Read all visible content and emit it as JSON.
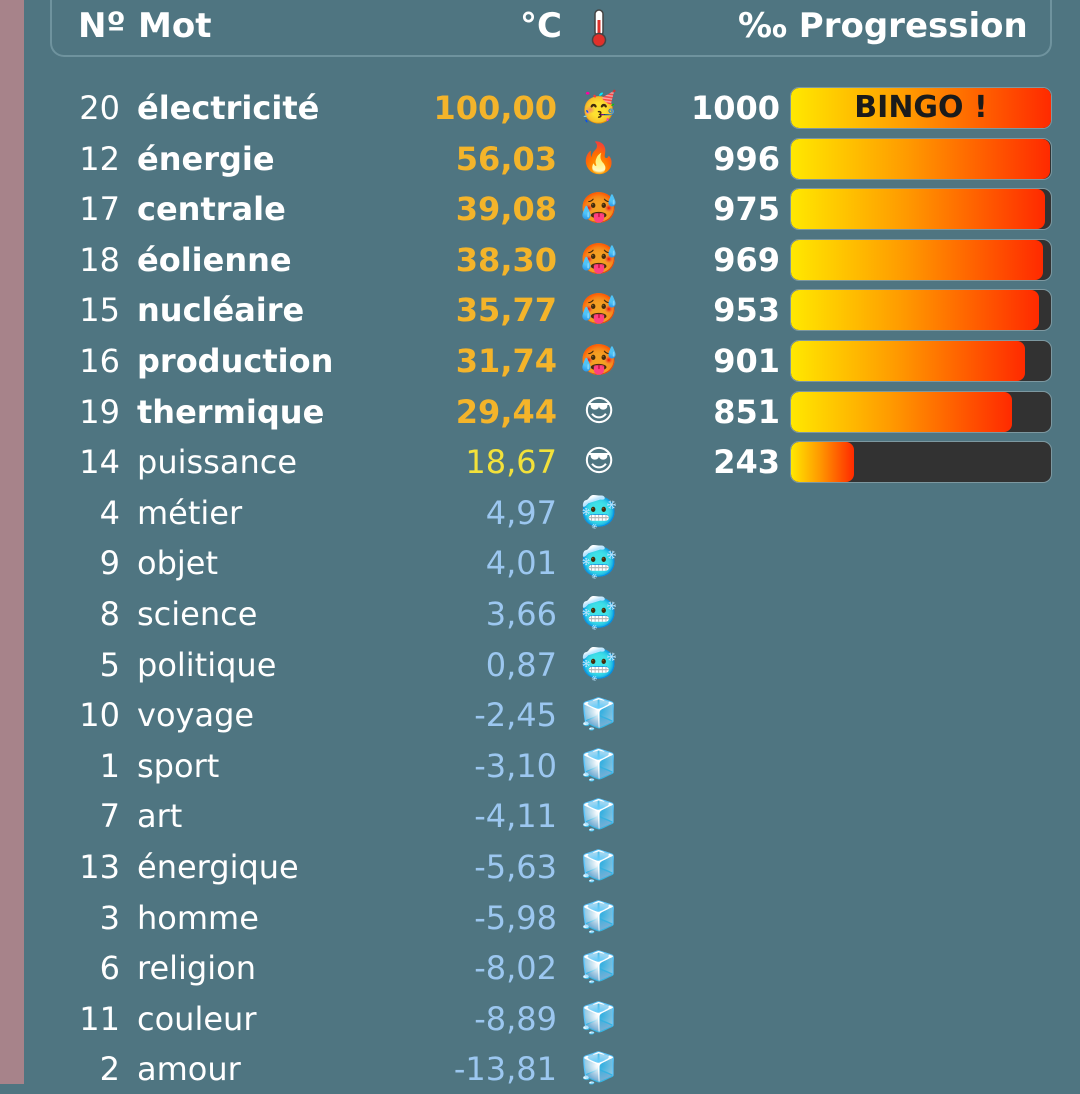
{
  "header": {
    "num": "Nº",
    "word": "Mot",
    "temp": "°C",
    "progress": "‰ Progression"
  },
  "colors": {
    "background": "#4f7581",
    "hot_text": "#f4b42a",
    "warm_text": "#f3e13a",
    "cold_text": "#9cc7f0",
    "bar_start": "#ffe800",
    "bar_end": "#ff2a00"
  },
  "rows": [
    {
      "num": "20",
      "word": "électricité",
      "temp": "100,00",
      "emoji": "🥳",
      "icon": "party-face-icon",
      "score": "1000",
      "progress": 1000,
      "label": "BINGO !",
      "tier": "hot"
    },
    {
      "num": "12",
      "word": "énergie",
      "temp": "56,03",
      "emoji": "🔥",
      "icon": "fire-icon",
      "score": "996",
      "progress": 996,
      "tier": "hot"
    },
    {
      "num": "17",
      "word": "centrale",
      "temp": "39,08",
      "emoji": "🥵",
      "icon": "hot-face-icon",
      "score": "975",
      "progress": 975,
      "tier": "hot"
    },
    {
      "num": "18",
      "word": "éolienne",
      "temp": "38,30",
      "emoji": "🥵",
      "icon": "hot-face-icon",
      "score": "969",
      "progress": 969,
      "tier": "hot"
    },
    {
      "num": "15",
      "word": "nucléaire",
      "temp": "35,77",
      "emoji": "🥵",
      "icon": "hot-face-icon",
      "score": "953",
      "progress": 953,
      "tier": "hot"
    },
    {
      "num": "16",
      "word": "production",
      "temp": "31,74",
      "emoji": "🥵",
      "icon": "hot-face-icon",
      "score": "901",
      "progress": 901,
      "tier": "hot"
    },
    {
      "num": "19",
      "word": "thermique",
      "temp": "29,44",
      "emoji": "😎",
      "icon": "sunglasses-face-icon",
      "score": "851",
      "progress": 851,
      "tier": "hot"
    },
    {
      "num": "14",
      "word": "puissance",
      "temp": "18,67",
      "emoji": "😎",
      "icon": "sunglasses-face-icon",
      "score": "243",
      "progress": 243,
      "tier": "warm"
    },
    {
      "num": "4",
      "word": "métier",
      "temp": "4,97",
      "emoji": "🥶",
      "icon": "cold-face-icon",
      "tier": "cold"
    },
    {
      "num": "9",
      "word": "objet",
      "temp": "4,01",
      "emoji": "🥶",
      "icon": "cold-face-icon",
      "tier": "cold"
    },
    {
      "num": "8",
      "word": "science",
      "temp": "3,66",
      "emoji": "🥶",
      "icon": "cold-face-icon",
      "tier": "cold"
    },
    {
      "num": "5",
      "word": "politique",
      "temp": "0,87",
      "emoji": "🥶",
      "icon": "cold-face-icon",
      "tier": "cold"
    },
    {
      "num": "10",
      "word": "voyage",
      "temp": "-2,45",
      "emoji": "🧊",
      "icon": "ice-cube-icon",
      "tier": "ice"
    },
    {
      "num": "1",
      "word": "sport",
      "temp": "-3,10",
      "emoji": "🧊",
      "icon": "ice-cube-icon",
      "tier": "ice"
    },
    {
      "num": "7",
      "word": "art",
      "temp": "-4,11",
      "emoji": "🧊",
      "icon": "ice-cube-icon",
      "tier": "ice"
    },
    {
      "num": "13",
      "word": "énergique",
      "temp": "-5,63",
      "emoji": "🧊",
      "icon": "ice-cube-icon",
      "tier": "ice"
    },
    {
      "num": "3",
      "word": "homme",
      "temp": "-5,98",
      "emoji": "🧊",
      "icon": "ice-cube-icon",
      "tier": "ice"
    },
    {
      "num": "6",
      "word": "religion",
      "temp": "-8,02",
      "emoji": "🧊",
      "icon": "ice-cube-icon",
      "tier": "ice"
    },
    {
      "num": "11",
      "word": "couleur",
      "temp": "-8,89",
      "emoji": "🧊",
      "icon": "ice-cube-icon",
      "tier": "ice"
    },
    {
      "num": "2",
      "word": "amour",
      "temp": "-13,81",
      "emoji": "🧊",
      "icon": "ice-cube-icon",
      "tier": "ice"
    }
  ]
}
